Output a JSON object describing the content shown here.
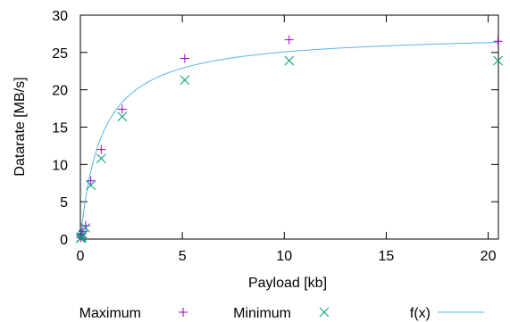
{
  "chart_data": {
    "type": "scatter",
    "xlabel": "Payload [kb]",
    "ylabel": "Datarate [MB/s]",
    "xlim": [
      0,
      20.5
    ],
    "ylim": [
      0,
      30
    ],
    "x_ticks": [
      0,
      5,
      10,
      15,
      20
    ],
    "y_ticks": [
      0,
      5,
      10,
      15,
      20,
      25,
      30
    ],
    "grid": false,
    "legend_position": "bottom",
    "series": [
      {
        "name": "Maximum",
        "marker": "plus",
        "color": "#9400d3",
        "x": [
          0.016,
          0.032,
          0.064,
          0.128,
          0.256,
          0.512,
          1.024,
          2.048,
          5.12,
          10.24,
          20.48
        ],
        "y": [
          0.2,
          0.4,
          0.7,
          1.0,
          1.8,
          7.8,
          12.0,
          17.4,
          24.2,
          26.7,
          26.5
        ]
      },
      {
        "name": "Minimum",
        "marker": "cross",
        "color": "#009e73",
        "x": [
          0.016,
          0.032,
          0.064,
          0.128,
          0.256,
          0.512,
          1.024,
          2.048,
          5.12,
          10.24,
          20.48
        ],
        "y": [
          0.1,
          0.2,
          0.3,
          0.6,
          1.5,
          7.2,
          10.8,
          16.4,
          21.3,
          23.9,
          23.9
        ]
      },
      {
        "name": "f(x)",
        "marker": "line",
        "color": "#56b4e9",
        "fit": {
          "a": 27.7,
          "b": 1.05
        }
      }
    ]
  }
}
